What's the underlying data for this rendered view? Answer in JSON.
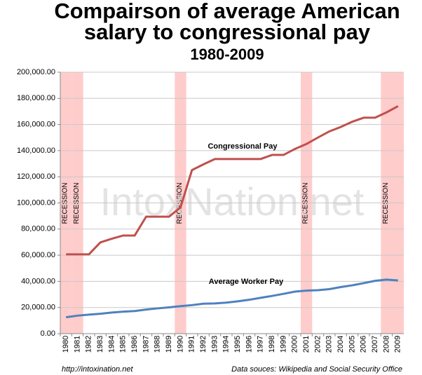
{
  "chart_data": {
    "type": "line",
    "title": [
      "Compairson of average American",
      "salary to congressional pay"
    ],
    "subtitle": "1980-2009",
    "watermark": "IntoxNation.net",
    "footer_left": "http://intoxination.net",
    "footer_right": "Data souces: Wikipedia and Social Security Office",
    "categories": [
      "1980",
      "1981",
      "1982",
      "1983",
      "1984",
      "1985",
      "1986",
      "1987",
      "1988",
      "1989",
      "1990",
      "1991",
      "1992",
      "1993",
      "1994",
      "1995",
      "1996",
      "1997",
      "1998",
      "1999",
      "2000",
      "2001",
      "2002",
      "2003",
      "2004",
      "2005",
      "2006",
      "2007",
      "2008",
      "2009"
    ],
    "series": [
      {
        "name": "Congressional Pay",
        "color": "#c0504d",
        "values": [
          60662,
          60662,
          60662,
          69800,
          72600,
          75100,
          75100,
          89500,
          89500,
          89500,
          96600,
          125100,
          129500,
          133600,
          133600,
          133600,
          133600,
          133600,
          136700,
          136700,
          141300,
          145100,
          150000,
          154700,
          158100,
          162100,
          165200,
          165200,
          169300,
          174000
        ]
      },
      {
        "name": "Average Worker Pay",
        "color": "#4f81bd",
        "values": [
          12513,
          13773,
          14531,
          15239,
          16135,
          16823,
          17322,
          18427,
          19334,
          20100,
          21028,
          21812,
          22935,
          23133,
          23754,
          24706,
          25914,
          27426,
          28861,
          30470,
          32155,
          32922,
          33252,
          34065,
          35649,
          36953,
          38651,
          40405,
          41335,
          40712
        ]
      }
    ],
    "recessions": [
      {
        "label": "RECESSION",
        "from": "1980",
        "to": "1980"
      },
      {
        "label": "RECESSION",
        "from": "1981",
        "to": "1981"
      },
      {
        "label": "RECESSION",
        "from": "1990",
        "to": "1990"
      },
      {
        "label": "RECESSION",
        "from": "2001",
        "to": "2001"
      },
      {
        "label": "RECESSION",
        "from": "2008",
        "to": "2009"
      }
    ],
    "recession_color": "#ffcccc",
    "ylim": [
      0,
      200000
    ],
    "yticks": [
      {
        "value": 0,
        "label": "0.00"
      },
      {
        "value": 20000,
        "label": "20,000.00"
      },
      {
        "value": 40000,
        "label": "40,000.00"
      },
      {
        "value": 60000,
        "label": "60,000.00"
      },
      {
        "value": 80000,
        "label": "80,000.00"
      },
      {
        "value": 100000,
        "label": "100,000.00"
      },
      {
        "value": 120000,
        "label": "120,000.00"
      },
      {
        "value": 140000,
        "label": "140,000.00"
      },
      {
        "value": 160000,
        "label": "160,000.00"
      },
      {
        "value": 180000,
        "label": "180,000.00"
      },
      {
        "value": 200000,
        "label": "200,000.00"
      }
    ],
    "grid": true
  }
}
